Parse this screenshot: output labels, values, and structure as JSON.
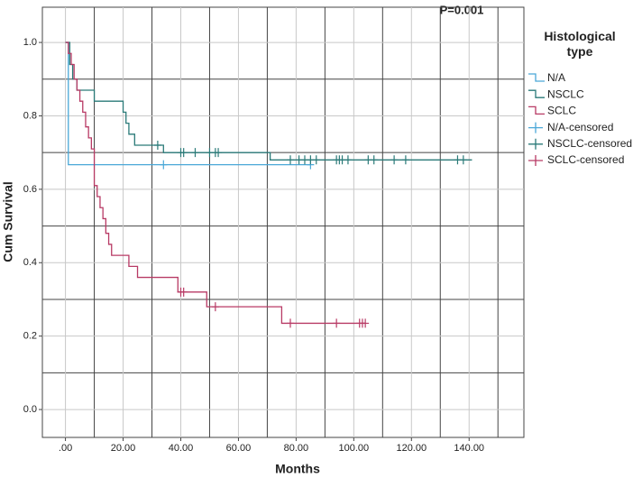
{
  "chart_data": {
    "type": "step",
    "title": "P=0.001",
    "x_label": "Months",
    "y_label": "Cum Survival",
    "legend_title": "Histological type",
    "legend": "right",
    "xlim": [
      -8,
      159
    ],
    "ylim": [
      -0.076,
      1.096
    ],
    "xticks": [
      {
        "value": 0,
        "label": ".00"
      },
      {
        "value": 20,
        "label": "20.00"
      },
      {
        "value": 40,
        "label": "40.00"
      },
      {
        "value": 60,
        "label": "60.00"
      },
      {
        "value": 80,
        "label": "80.00"
      },
      {
        "value": 100,
        "label": "100.00"
      },
      {
        "value": 120,
        "label": "120.00"
      },
      {
        "value": 140,
        "label": "140.00"
      }
    ],
    "yticks": [
      {
        "value": 0,
        "label": "0.0"
      },
      {
        "value": 0.2,
        "label": "0.2"
      },
      {
        "value": 0.4,
        "label": "0.4"
      },
      {
        "value": 0.6,
        "label": "0.6"
      },
      {
        "value": 0.8,
        "label": "0.8"
      },
      {
        "value": 1,
        "label": "1.0"
      }
    ],
    "xgrid": [
      10,
      30,
      50,
      70,
      90,
      110,
      130,
      150
    ],
    "ygrid": [
      0.1,
      0.3,
      0.5,
      0.7,
      0.9
    ],
    "grid": true,
    "series": [
      {
        "name": "N/A",
        "style": "step",
        "color": "#4aa8d8",
        "x": [
          0,
          1,
          85
        ],
        "values": [
          1.0,
          0.667,
          0.667
        ]
      },
      {
        "name": "NSCLC",
        "style": "step",
        "color": "#2a7a78",
        "x": [
          0,
          1.5,
          2.5,
          4,
          10,
          20,
          21,
          22,
          24,
          34,
          71,
          141
        ],
        "values": [
          1.0,
          0.94,
          0.9,
          0.87,
          0.84,
          0.81,
          0.78,
          0.75,
          0.72,
          0.7,
          0.68,
          0.68
        ]
      },
      {
        "name": "SCLC",
        "style": "step",
        "color": "#b83a65",
        "x": [
          0,
          1,
          2,
          3,
          4,
          5,
          6,
          7,
          8,
          9,
          10,
          11,
          12,
          13,
          14,
          15,
          16,
          22,
          25,
          39,
          49,
          75,
          104
        ],
        "values": [
          1.0,
          0.97,
          0.94,
          0.9,
          0.87,
          0.84,
          0.81,
          0.77,
          0.74,
          0.71,
          0.61,
          0.58,
          0.55,
          0.52,
          0.48,
          0.45,
          0.42,
          0.39,
          0.36,
          0.32,
          0.28,
          0.235,
          0.235
        ]
      },
      {
        "name": "N/A-censored",
        "style": "censor",
        "color": "#4aa8d8",
        "x": [
          34,
          85
        ],
        "values": [
          0.667,
          0.667
        ]
      },
      {
        "name": "NSCLC-censored",
        "style": "censor",
        "color": "#2a7a78",
        "x": [
          32,
          40,
          41,
          45,
          50,
          52,
          53,
          78,
          81,
          83,
          85,
          87,
          94,
          95,
          96,
          98,
          105,
          107,
          114,
          118,
          136,
          138
        ],
        "values": [
          0.72,
          0.7,
          0.7,
          0.7,
          0.7,
          0.7,
          0.7,
          0.68,
          0.68,
          0.68,
          0.68,
          0.68,
          0.68,
          0.68,
          0.68,
          0.68,
          0.68,
          0.68,
          0.68,
          0.68,
          0.68,
          0.68
        ]
      },
      {
        "name": "SCLC-censored",
        "style": "censor",
        "color": "#b83a65",
        "x": [
          40,
          41,
          52,
          78,
          94,
          102,
          103,
          104
        ],
        "values": [
          0.32,
          0.32,
          0.28,
          0.235,
          0.235,
          0.235,
          0.235,
          0.235
        ]
      }
    ]
  }
}
